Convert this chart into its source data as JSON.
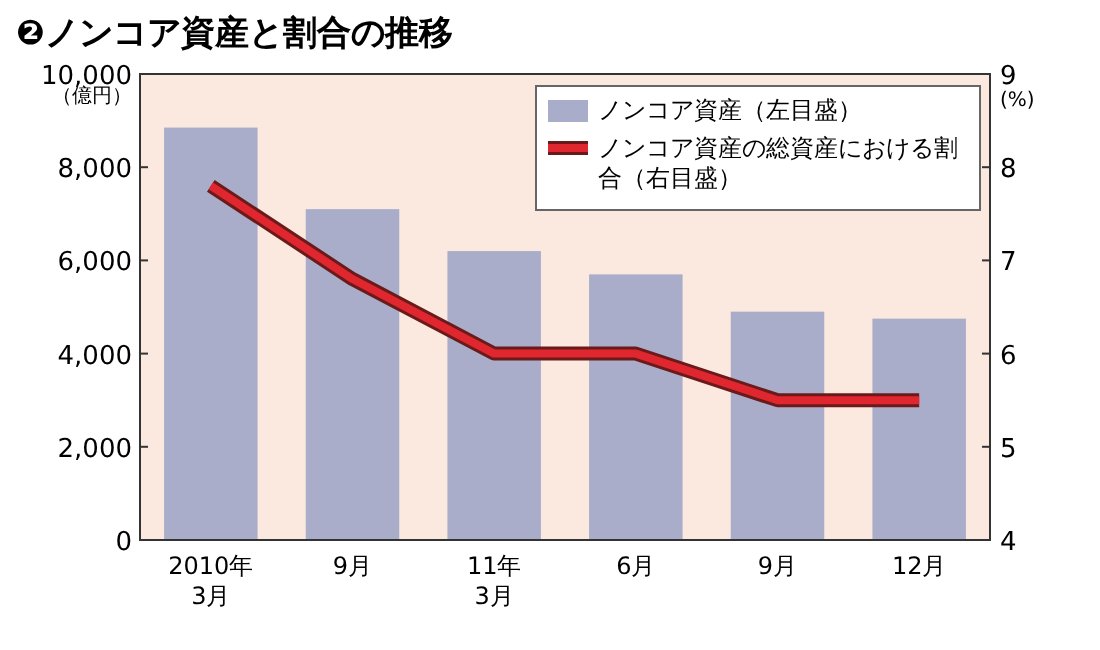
{
  "chart_data": {
    "type": "bar",
    "title": "❷ノンコア資産と割合の推移",
    "ylabel": "（億円）",
    "y2label": "(%)",
    "categories": [
      "2010年\n3月",
      "9月",
      "11年\n3月",
      "6月",
      "9月",
      "12月"
    ],
    "series": [
      {
        "name": "ノンコア資産（左目盛）",
        "color": "#a9adc9",
        "values": [
          8850,
          7100,
          6200,
          5700,
          4900,
          4750
        ]
      },
      {
        "name": "ノンコア資産の総資産における割合（右目盛）",
        "type": "line",
        "axis": "y2",
        "color": "#e0262e",
        "values": [
          7.8,
          6.8,
          6.0,
          6.0,
          5.5,
          5.5
        ]
      }
    ],
    "ylim": [
      0,
      10000
    ],
    "yticks": [
      0,
      {
        "value": 2000,
        "label": "2,000"
      },
      {
        "value": 4000,
        "label": "4,000"
      },
      {
        "value": 6000,
        "label": "6,000"
      },
      {
        "value": 8000,
        "label": "8,000"
      },
      {
        "value": 10000,
        "label": "10,000"
      }
    ],
    "y2lim": [
      4,
      9
    ],
    "y2ticks": [
      4,
      5,
      6,
      7,
      8,
      9
    ],
    "legend": "top right",
    "grid": false
  }
}
